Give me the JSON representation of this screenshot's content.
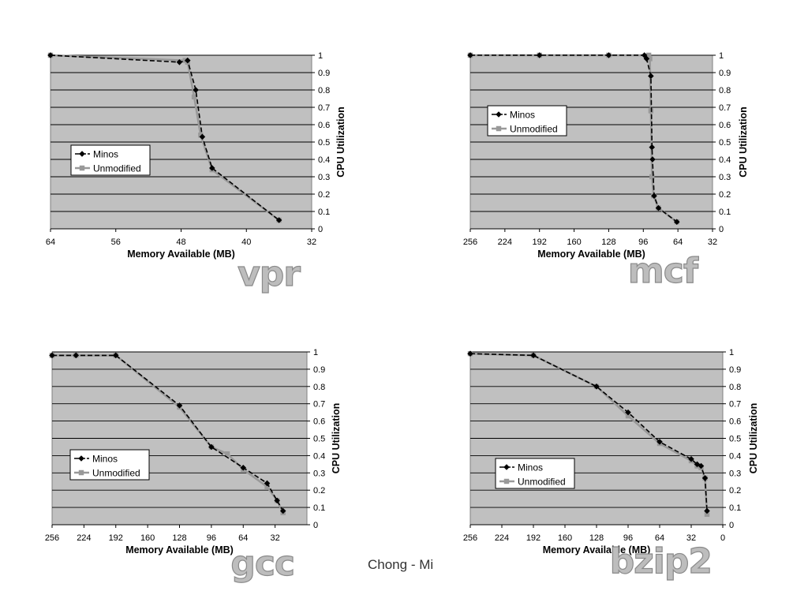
{
  "footer": {
    "text": "Chong - Mi"
  },
  "colors": {
    "plot_background": "#c0c0c0",
    "gridline": "#000000",
    "minos_line": "#000000",
    "unmodified_line": "#999999",
    "big_label_fill": "#bdbdbd",
    "big_label_stroke": "#8a8a8a"
  },
  "chart_data": [
    {
      "type": "line",
      "title": "vpr",
      "xlabel": "Memory Available (MB)",
      "ylabel": "CPU Utilization",
      "xlim": [
        64,
        32
      ],
      "x_reversed": true,
      "x_ticks": [
        "64",
        "56",
        "48",
        "40",
        "32"
      ],
      "ylim": [
        0,
        1
      ],
      "y_ticks": [
        "0",
        "0.1",
        "0.2",
        "0.3",
        "0.4",
        "0.5",
        "0.6",
        "0.7",
        "0.8",
        "0.9",
        "1"
      ],
      "grid": true,
      "legend": "middle-left",
      "series": [
        {
          "name": "Minos",
          "marker": "diamond",
          "points": [
            [
              64,
              1.0
            ],
            [
              48.2,
              0.96
            ],
            [
              47.2,
              0.97
            ],
            [
              46.2,
              0.8
            ],
            [
              45.4,
              0.53
            ],
            [
              44.2,
              0.35
            ],
            [
              36,
              0.05
            ]
          ]
        },
        {
          "name": "Unmodified",
          "marker": "square",
          "points": [
            [
              64,
              1.0
            ],
            [
              47.5,
              0.97
            ],
            [
              47.2,
              0.96
            ],
            [
              46.4,
              0.76
            ],
            [
              45.6,
              0.54
            ],
            [
              44.2,
              0.34
            ],
            [
              36,
              0.05
            ]
          ]
        }
      ]
    },
    {
      "type": "line",
      "title": "mcf",
      "xlabel": "Memory Available (MB)",
      "ylabel": "CPU Utilization",
      "xlim": [
        256,
        32
      ],
      "x_reversed": true,
      "x_ticks": [
        "256",
        "224",
        "192",
        "160",
        "128",
        "96",
        "64",
        "32"
      ],
      "ylim": [
        0,
        1
      ],
      "y_ticks": [
        "0",
        "0.1",
        "0.2",
        "0.3",
        "0.4",
        "0.5",
        "0.6",
        "0.7",
        "0.8",
        "0.9",
        "1"
      ],
      "grid": true,
      "legend": "upper-left",
      "series": [
        {
          "name": "Minos",
          "marker": "diamond",
          "points": [
            [
              256,
              1.0
            ],
            [
              192,
              1.0
            ],
            [
              128,
              1.0
            ],
            [
              95,
              1.0
            ],
            [
              93,
              0.98
            ],
            [
              89,
              0.88
            ],
            [
              88,
              0.47
            ],
            [
              87.5,
              0.4
            ],
            [
              86,
              0.19
            ],
            [
              82,
              0.12
            ],
            [
              65,
              0.04
            ]
          ]
        },
        {
          "name": "Unmodified",
          "marker": "square",
          "points": [
            [
              256,
              1.0
            ],
            [
              192,
              1.0
            ],
            [
              128,
              1.0
            ],
            [
              91,
              1.0
            ],
            [
              90,
              0.98
            ],
            [
              89,
              0.68
            ],
            [
              88,
              0.3
            ],
            [
              86.5,
              0.19
            ],
            [
              82,
              0.12
            ],
            [
              65,
              0.04
            ]
          ]
        }
      ]
    },
    {
      "type": "line",
      "title": "gcc",
      "xlabel": "Memory Available (MB)",
      "ylabel": "CPU Utilization",
      "xlim": [
        256,
        0
      ],
      "x_reversed": true,
      "x_ticks": [
        "256",
        "224",
        "192",
        "160",
        "128",
        "96",
        "64",
        "32"
      ],
      "ylim": [
        0,
        1
      ],
      "y_ticks": [
        "0",
        "0.1",
        "0.2",
        "0.3",
        "0.4",
        "0.5",
        "0.6",
        "0.7",
        "0.8",
        "0.9",
        "1"
      ],
      "grid": true,
      "legend": "lower-left",
      "series": [
        {
          "name": "Minos",
          "marker": "diamond",
          "points": [
            [
              256,
              0.98
            ],
            [
              232,
              0.98
            ],
            [
              192,
              0.98
            ],
            [
              128,
              0.69
            ],
            [
              96,
              0.45
            ],
            [
              64,
              0.33
            ],
            [
              40,
              0.24
            ],
            [
              30,
              0.14
            ],
            [
              24,
              0.08
            ]
          ]
        },
        {
          "name": "Unmodified",
          "marker": "square",
          "points": [
            [
              256,
              0.98
            ],
            [
              232,
              0.98
            ],
            [
              192,
              0.98
            ],
            [
              128,
              0.68
            ],
            [
              96,
              0.45
            ],
            [
              80,
              0.41
            ],
            [
              64,
              0.32
            ],
            [
              40,
              0.22
            ],
            [
              30,
              0.14
            ],
            [
              24,
              0.07
            ]
          ]
        }
      ]
    },
    {
      "type": "line",
      "title": "bzip2",
      "xlabel": "Memory Available (MB)",
      "ylabel": "CPU Utilization",
      "xlim": [
        256,
        0
      ],
      "x_reversed": true,
      "x_ticks": [
        "256",
        "224",
        "192",
        "160",
        "128",
        "96",
        "64",
        "32",
        "0"
      ],
      "ylim": [
        0,
        1
      ],
      "y_ticks": [
        "0",
        "0.1",
        "0.2",
        "0.3",
        "0.4",
        "0.5",
        "0.6",
        "0.7",
        "0.8",
        "0.9",
        "1"
      ],
      "grid": true,
      "legend": "lower-left",
      "series": [
        {
          "name": "Minos",
          "marker": "diamond",
          "points": [
            [
              256,
              0.99
            ],
            [
              192,
              0.98
            ],
            [
              128,
              0.8
            ],
            [
              96,
              0.65
            ],
            [
              64,
              0.48
            ],
            [
              32,
              0.38
            ],
            [
              26,
              0.35
            ],
            [
              22,
              0.34
            ],
            [
              18,
              0.27
            ],
            [
              16,
              0.08
            ]
          ]
        },
        {
          "name": "Unmodified",
          "marker": "square",
          "points": [
            [
              256,
              0.99
            ],
            [
              192,
              0.98
            ],
            [
              128,
              0.8
            ],
            [
              96,
              0.63
            ],
            [
              64,
              0.47
            ],
            [
              32,
              0.37
            ],
            [
              26,
              0.34
            ],
            [
              22,
              0.33
            ],
            [
              18,
              0.27
            ],
            [
              16,
              0.06
            ]
          ]
        }
      ]
    }
  ]
}
